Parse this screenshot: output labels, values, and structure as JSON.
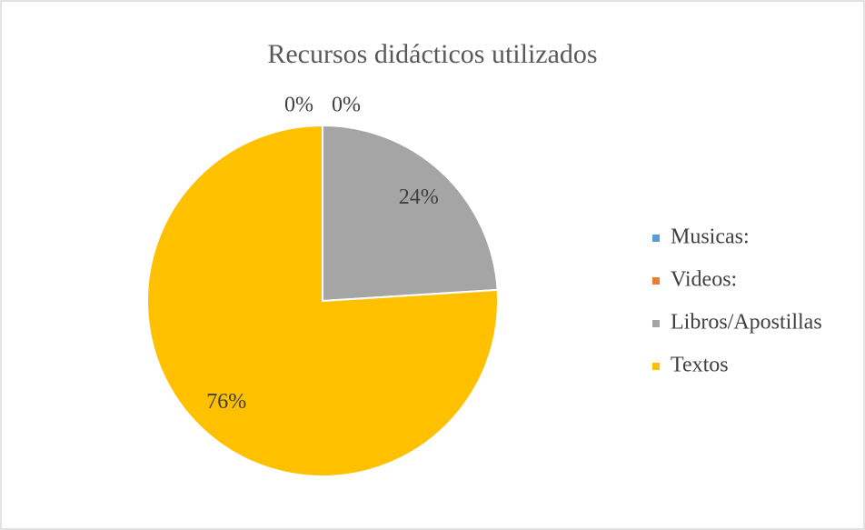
{
  "chart_data": {
    "type": "pie",
    "title": "Recursos didácticos utilizados",
    "categories": [
      "Musicas:",
      "Videos:",
      "Libros/Apostillas",
      "Textos"
    ],
    "values": [
      0,
      0,
      24,
      76
    ],
    "value_labels": [
      "0%",
      "0%",
      "24%",
      "76%"
    ],
    "colors": [
      "#5b9bd5",
      "#ed7d31",
      "#a5a5a5",
      "#ffc000"
    ],
    "legend": "right"
  }
}
